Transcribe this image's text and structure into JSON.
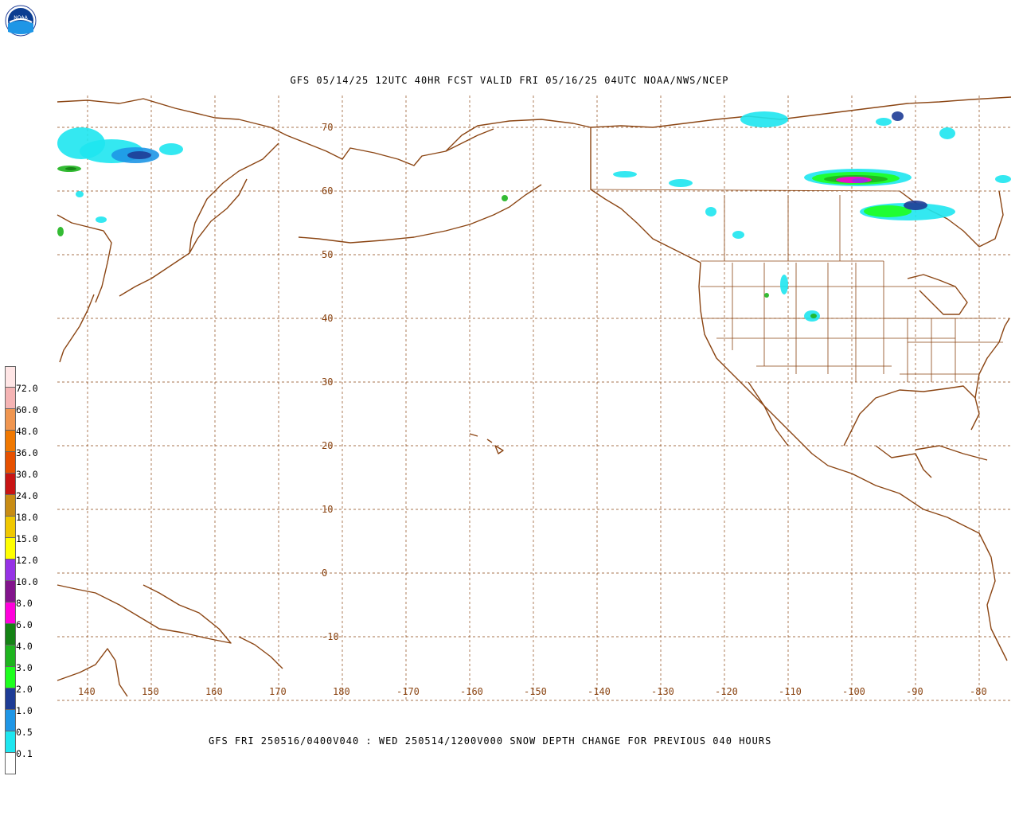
{
  "header": {
    "title": "GFS 05/14/25 12UTC 40HR FCST VALID FRI 05/16/25 04UTC NOAA/NWS/NCEP"
  },
  "footer": {
    "caption": "GFS FRI 250516/0400V040 : WED 250514/1200V000 SNOW DEPTH CHANGE FOR PREVIOUS 040 HOURS"
  },
  "logo": {
    "name": "noaa-logo",
    "text": "NOAA"
  },
  "map": {
    "lon_labels": [
      "140",
      "150",
      "160",
      "170",
      "180",
      "-170",
      "-160",
      "-150",
      "-140",
      "-130",
      "-120",
      "-110",
      "-100",
      "-90",
      "-80"
    ],
    "lat_labels": [
      "70",
      "60",
      "50",
      "40",
      "30",
      "20",
      "10",
      "0",
      "-10"
    ],
    "grid_color": "#8B4513",
    "coast_color": "#8B4513"
  },
  "legend": {
    "labels": [
      "72.0",
      "60.0",
      "48.0",
      "36.0",
      "30.0",
      "24.0",
      "18.0",
      "15.0",
      "12.0",
      "10.0",
      "8.0",
      "6.0",
      "4.0",
      "3.0",
      "2.0",
      "1.0",
      "0.5",
      "0.1"
    ],
    "colors": [
      "#FFE6E6",
      "#F5B4B4",
      "#F09650",
      "#F07800",
      "#E65000",
      "#C81414",
      "#C88C14",
      "#F0C800",
      "#FFFF00",
      "#9632E6",
      "#82148C",
      "#FF00DC",
      "#148214",
      "#1EB41E",
      "#1EFF1E",
      "#1E3C96",
      "#1E96E6",
      "#1EE6F0",
      "#FFFFFF"
    ]
  }
}
